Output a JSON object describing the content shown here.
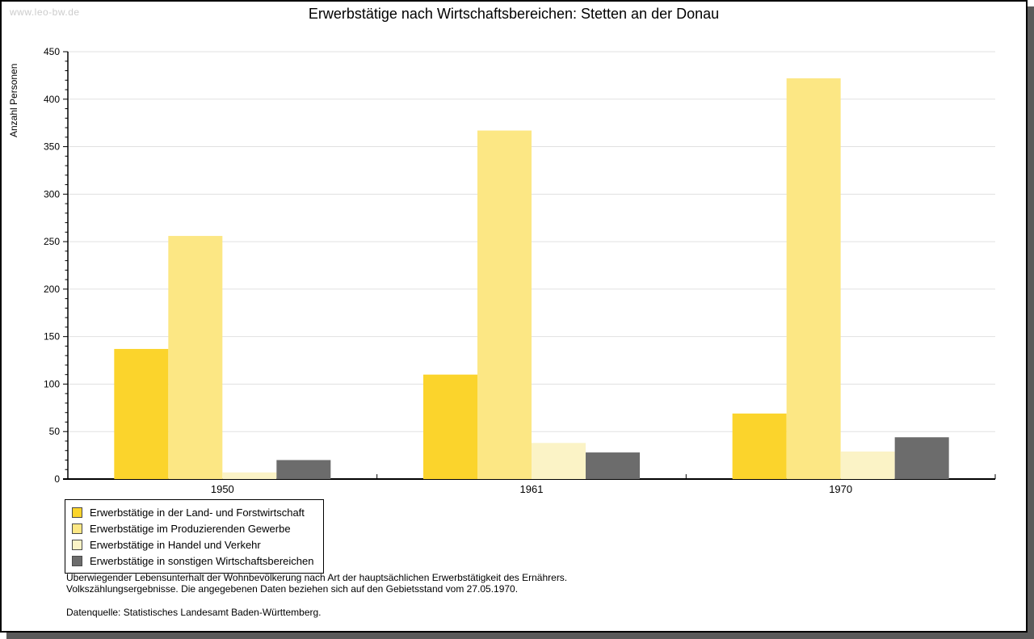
{
  "watermark": "www.leo-bw.de",
  "title": "Erwerbstätige nach Wirtschaftsbereichen: Stetten an der Donau",
  "chart_data": {
    "type": "bar",
    "title": "Erwerbstätige nach Wirtschaftsbereichen: Stetten an der Donau",
    "ylabel": "Anzahl Personen",
    "xlabel": "",
    "categories": [
      "1950",
      "1961",
      "1970"
    ],
    "series": [
      {
        "name": "Erwerbstätige in der Land- und Forstwirtschaft",
        "color": "#fbd42c",
        "values": [
          137,
          110,
          69
        ]
      },
      {
        "name": "Erwerbstätige im Produzierenden Gewerbe",
        "color": "#fce784",
        "values": [
          256,
          367,
          422
        ]
      },
      {
        "name": "Erwerbstätige in Handel und Verkehr",
        "color": "#fbf3c6",
        "values": [
          7,
          38,
          29
        ]
      },
      {
        "name": "Erwerbstätige in sonstigen Wirtschaftsbereichen",
        "color": "#6c6c6c",
        "values": [
          20,
          28,
          44
        ]
      }
    ],
    "ylim": [
      0,
      450
    ],
    "ytick_step": 50,
    "minor_tick_step": 10,
    "grid": true,
    "legend_position": "bottom-left"
  },
  "footer": {
    "line1": "Überwiegender Lebensunterhalt der Wohnbevölkerung nach Art der hauptsächlichen Erwerbstätigkeit des Ernährers.",
    "line2": "Volkszählungsergebnisse. Die angegebenen Daten beziehen sich auf den Gebietsstand vom 27.05.1970.",
    "source": "Datenquelle: Statistisches Landesamt Baden-Württemberg."
  },
  "colors": {
    "grid": "#e1e1e1",
    "axis": "#000000",
    "shadow": "#5a5a5a",
    "watermark": "#cccccc"
  }
}
